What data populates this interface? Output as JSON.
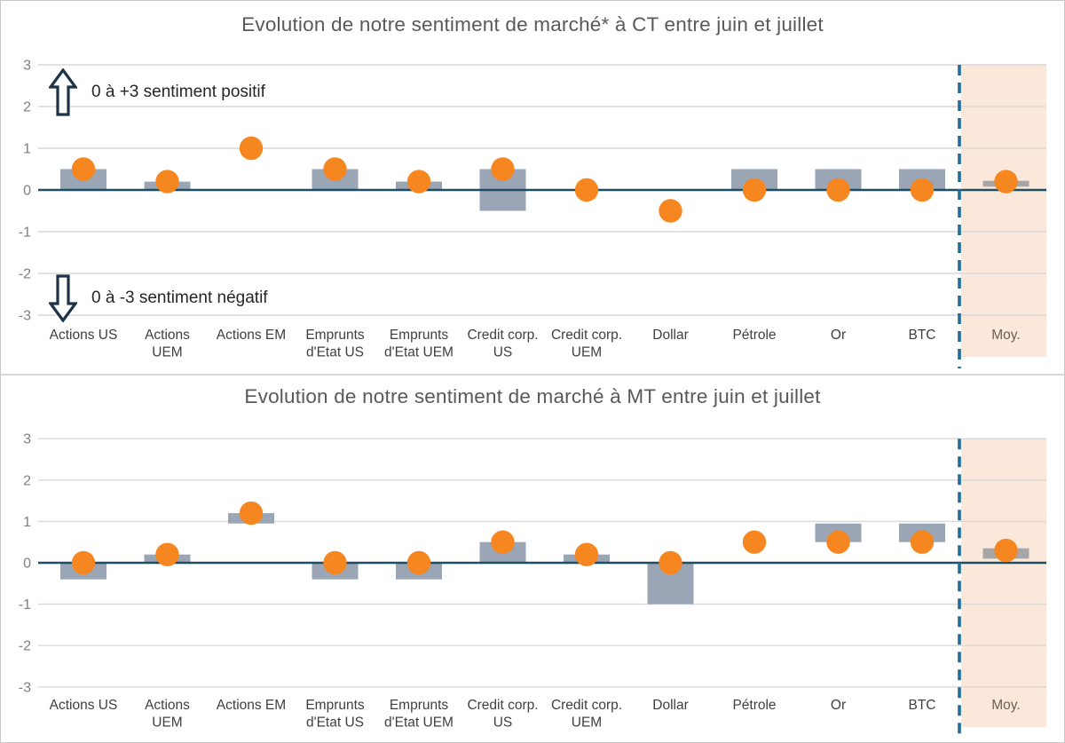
{
  "colors": {
    "bar": "#9aa5b5",
    "moy_bar": "#a6a6a6",
    "dot": "#f6861f",
    "zero_line": "#1e4e63",
    "grid": "#d9d9d9",
    "dashed_separator": "#1f6e99",
    "moy_band_bg": "#fce8db",
    "title_text": "#595959",
    "axis_text": "#7f7f7f",
    "label_text": "#3f3f3f",
    "moy_label_text": "#6a6057",
    "annotation_text": "#262626",
    "arrow_outline": "#1e3348"
  },
  "annotations": {
    "positive": "0 à +3 sentiment positif",
    "negative": "0 à -3 sentiment négatif"
  },
  "chart_data": [
    {
      "type": "bar+scatter",
      "title": "Evolution de notre sentiment de marché* à CT entre juin et juillet",
      "ylim": [
        -3,
        3
      ],
      "y_ticks": [
        3,
        2,
        1,
        0,
        -1,
        -2,
        -3
      ],
      "grid": true,
      "highlight_column": "Moy.",
      "separator_before_last": "dashed-vertical-line",
      "categories": [
        "Actions US",
        "Actions UEM",
        "Actions EM",
        "Emprunts d'Etat US",
        "Emprunts d'Etat UEM",
        "Credit corp. US",
        "Credit corp. UEM",
        "Dollar",
        "Pétrole",
        "Or",
        "BTC",
        "Moy."
      ],
      "category_label_lines": [
        [
          "Actions US"
        ],
        [
          "Actions",
          "UEM"
        ],
        [
          "Actions EM"
        ],
        [
          "Emprunts",
          "d'Etat US"
        ],
        [
          "Emprunts",
          "d'Etat UEM"
        ],
        [
          "Credit corp.",
          "US"
        ],
        [
          "Credit corp.",
          "UEM"
        ],
        [
          "Dollar"
        ],
        [
          "Pétrole"
        ],
        [
          "Or"
        ],
        [
          "BTC"
        ],
        [
          "Moy."
        ]
      ],
      "bars_from_to": [
        [
          0,
          0.5
        ],
        [
          0,
          0.2
        ],
        null,
        [
          0,
          0.5
        ],
        [
          0,
          0.2
        ],
        [
          -0.5,
          0.5
        ],
        null,
        null,
        [
          0,
          0.5
        ],
        [
          0,
          0.5
        ],
        [
          0,
          0.5
        ],
        [
          0.08,
          0.22
        ]
      ],
      "dots": [
        0.5,
        0.2,
        1.0,
        0.5,
        0.2,
        0.5,
        0,
        -0.5,
        0,
        0,
        0,
        0.2
      ]
    },
    {
      "type": "bar+scatter",
      "title": "Evolution de notre sentiment de marché à MT entre juin et juillet",
      "ylim": [
        -3,
        3
      ],
      "y_ticks": [
        3,
        2,
        1,
        0,
        -1,
        -2,
        -3
      ],
      "grid": true,
      "highlight_column": "Moy.",
      "separator_before_last": "dashed-vertical-line",
      "categories": [
        "Actions US",
        "Actions UEM",
        "Actions EM",
        "Emprunts d'Etat US",
        "Emprunts d'Etat UEM",
        "Credit corp. US",
        "Credit corp. UEM",
        "Dollar",
        "Pétrole",
        "Or",
        "BTC",
        "Moy."
      ],
      "category_label_lines": [
        [
          "Actions US"
        ],
        [
          "Actions",
          "UEM"
        ],
        [
          "Actions EM"
        ],
        [
          "Emprunts",
          "d'Etat US"
        ],
        [
          "Emprunts",
          "d'Etat UEM"
        ],
        [
          "Credit corp.",
          "US"
        ],
        [
          "Credit corp.",
          "UEM"
        ],
        [
          "Dollar"
        ],
        [
          "Pétrole"
        ],
        [
          "Or"
        ],
        [
          "BTC"
        ],
        [
          "Moy."
        ]
      ],
      "bars_from_to": [
        [
          -0.4,
          0
        ],
        [
          0,
          0.2
        ],
        [
          0.95,
          1.2
        ],
        [
          -0.4,
          0
        ],
        [
          -0.4,
          0
        ],
        [
          0,
          0.5
        ],
        [
          0,
          0.2
        ],
        [
          -1.0,
          0
        ],
        null,
        [
          0.5,
          0.95
        ],
        [
          0.5,
          0.95
        ],
        [
          0.1,
          0.35
        ]
      ],
      "dots": [
        0,
        0.2,
        1.2,
        0,
        0,
        0.5,
        0.2,
        0,
        0.5,
        0.5,
        0.5,
        0.3
      ]
    }
  ]
}
